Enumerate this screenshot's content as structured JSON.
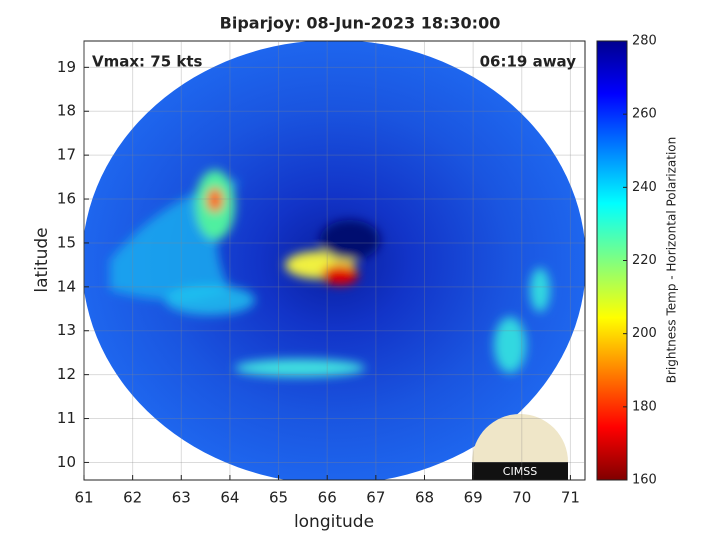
{
  "chart_data": {
    "type": "image",
    "title": "Biparjoy: 08-Jun-2023 18:30:00",
    "annotations": [
      "Vmax: 75 kts",
      "06:19 away"
    ],
    "logo": "CIMSS",
    "xlabel": "longitude",
    "ylabel": "latitude",
    "xlim": [
      61,
      71.3
    ],
    "ylim": [
      9.6,
      19.6
    ],
    "xticks": [
      61,
      62,
      63,
      64,
      65,
      66,
      67,
      68,
      69,
      70,
      71
    ],
    "yticks": [
      10,
      11,
      12,
      13,
      14,
      15,
      16,
      17,
      18,
      19
    ],
    "grid": true,
    "colorbar": {
      "label": "Brightness Temp - Horizontal Polarization",
      "lim": [
        160,
        280
      ],
      "ticks": [
        160,
        180,
        200,
        220,
        240,
        260,
        280
      ]
    }
  }
}
